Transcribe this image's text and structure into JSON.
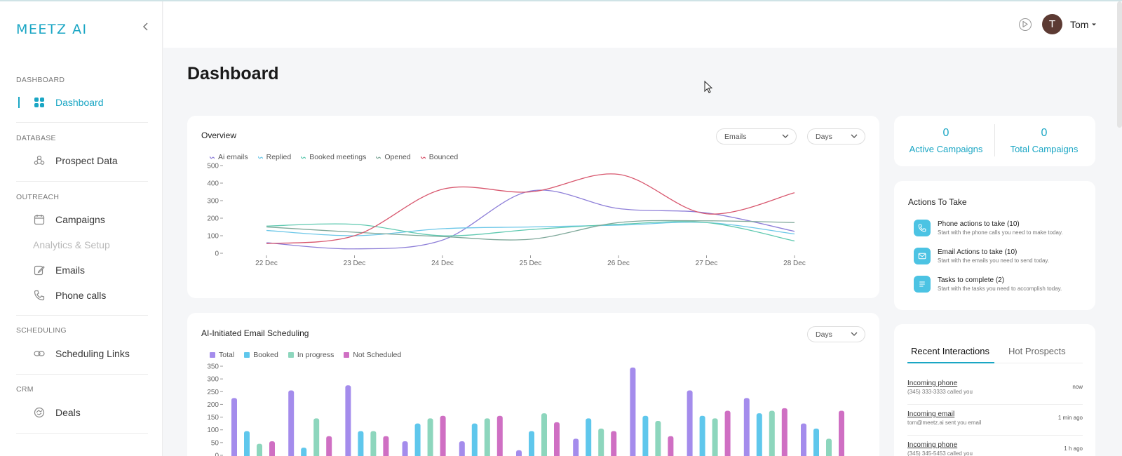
{
  "app": {
    "logo": "MEETZ AI"
  },
  "sidebar": {
    "sections": [
      {
        "label": "DASHBOARD"
      },
      {
        "label": "DATABASE"
      },
      {
        "label": "OUTREACH"
      },
      {
        "label": "SCHEDULING"
      },
      {
        "label": "CRM"
      }
    ],
    "items": [
      {
        "label": "Dashboard",
        "icon": "grid-icon"
      },
      {
        "label": "Prospect Data",
        "icon": "people-icon"
      },
      {
        "label": "Campaigns",
        "icon": "calendar-icon"
      },
      {
        "label": "Analytics & Setup"
      },
      {
        "label": "Emails",
        "icon": "edit-icon"
      },
      {
        "label": "Phone calls",
        "icon": "phone-icon"
      },
      {
        "label": "Scheduling Links",
        "icon": "link-icon"
      },
      {
        "label": "Deals",
        "icon": "deals-icon"
      }
    ]
  },
  "topbar": {
    "user_name": "Tom",
    "avatar_initial": "T"
  },
  "page": {
    "title": "Dashboard"
  },
  "overview": {
    "title": "Overview",
    "metric_select": "Emails",
    "period_select": "Days"
  },
  "scheduling": {
    "title": "AI-Initiated Email Scheduling",
    "period_select": "Days"
  },
  "stats": [
    {
      "value": "0",
      "label": "Active Campaigns"
    },
    {
      "value": "0",
      "label": "Total Campaigns"
    }
  ],
  "actions": {
    "title": "Actions To Take",
    "items": [
      {
        "title": "Phone actions to take (10)",
        "subtitle": "Start with the phone calls you need to make today.",
        "icon": "phone-icon"
      },
      {
        "title": "Email Actions to take (10)",
        "subtitle": "Start with the emails you need to send today.",
        "icon": "mail-icon"
      },
      {
        "title": "Tasks to complete (2)",
        "subtitle": "Start with the tasks you need to accomplish today.",
        "icon": "list-icon"
      }
    ]
  },
  "interactions": {
    "tabs": [
      "Recent Interactions",
      "Hot Prospects"
    ],
    "items": [
      {
        "title": "Incoming phone",
        "subtitle": "(345) 333-3333 called you",
        "time": "now"
      },
      {
        "title": "Incoming email",
        "subtitle": "tom@meetz.ai sent you email",
        "time": "1 min ago"
      },
      {
        "title": "Incoming phone",
        "subtitle": "(345) 345-5453 called you",
        "time": "1 h ago"
      }
    ]
  },
  "colors": {
    "accent": "#1aa6c4"
  },
  "chart_data": [
    {
      "type": "line",
      "legend_placement": "top-left",
      "grid": false,
      "categories": [
        "22 Dec",
        "23 Dec",
        "24 Dec",
        "25 Dec",
        "26 Dec",
        "27 Dec",
        "28 Dec"
      ],
      "yticks": [
        0,
        100,
        200,
        300,
        400,
        500
      ],
      "ylim": [
        0,
        500
      ],
      "series": [
        {
          "name": "Ai emails",
          "color": "#8e7fd8",
          "values": [
            60,
            25,
            75,
            355,
            255,
            230,
            125
          ]
        },
        {
          "name": "Replied",
          "color": "#6cc7e8",
          "values": [
            130,
            100,
            140,
            150,
            160,
            175,
            110
          ]
        },
        {
          "name": "Booked meetings",
          "color": "#5fc9b0",
          "values": [
            155,
            165,
            100,
            135,
            165,
            175,
            70
          ]
        },
        {
          "name": "Opened",
          "color": "#7fa89a",
          "values": [
            150,
            120,
            95,
            80,
            175,
            185,
            175
          ]
        },
        {
          "name": "Bounced",
          "color": "#d8576e",
          "values": [
            55,
            100,
            365,
            350,
            450,
            225,
            345
          ]
        }
      ]
    },
    {
      "type": "bar",
      "legend_placement": "top-left",
      "grid": false,
      "yticks": [
        0,
        50,
        100,
        150,
        200,
        250,
        300,
        350
      ],
      "ylim": [
        0,
        350
      ],
      "series": [
        {
          "name": "Total",
          "color": "#a48cec",
          "values": [
            225,
            255,
            275,
            55,
            55,
            20,
            65,
            345,
            255,
            225,
            125
          ]
        },
        {
          "name": "Booked",
          "color": "#5fc7ec",
          "values": [
            95,
            30,
            95,
            125,
            125,
            95,
            145,
            155,
            155,
            165,
            105
          ]
        },
        {
          "name": "In progress",
          "color": "#8dd6bd",
          "values": [
            45,
            145,
            95,
            145,
            145,
            165,
            105,
            135,
            145,
            175,
            65
          ]
        },
        {
          "name": "Not Scheduled",
          "color": "#cf6fc3",
          "values": [
            55,
            75,
            75,
            155,
            155,
            130,
            95,
            75,
            175,
            185,
            175
          ]
        }
      ]
    }
  ]
}
